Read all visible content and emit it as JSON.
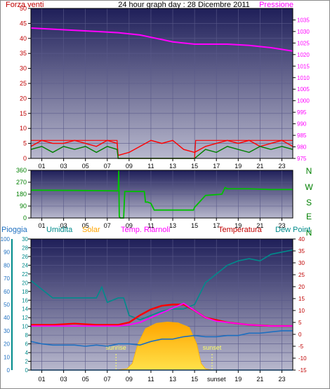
{
  "colors": {
    "background": "#ffffff",
    "plot_top": "#1f1f59",
    "plot_bottom": "#b8b8cd",
    "grid": "#5a5a8a",
    "tick_text": "#000000",
    "wind_speed": "#ff0000",
    "wind_gust": "#008000",
    "pressure": "#ff00ff",
    "wind_dir": "#00c000",
    "humidity": "#008b8b",
    "solar": "#ffa500",
    "indoor_temp": "#ff00ff",
    "temperature": "#ff0000",
    "dew_point": "#1e6fc0",
    "rain": "#1e90ff",
    "sun_marker": "#ffff66"
  },
  "chart_data": [
    {
      "id": "wind-pressure",
      "type": "line",
      "title": "24 hour graph day : 28 Dicembre 2011",
      "left_label": "Forza venti",
      "right_label": "Pressione",
      "x_ticks": [
        "01",
        "03",
        "05",
        "07",
        "09",
        "11",
        "13",
        "15",
        "17",
        "19",
        "21",
        "23"
      ],
      "xlim": [
        0,
        24
      ],
      "ylim": [
        0,
        50
      ],
      "y_ticks": [
        0,
        5,
        10,
        15,
        20,
        25,
        30,
        35,
        40,
        45,
        50
      ],
      "y2lim": [
        975,
        1040
      ],
      "y2_ticks": [
        975,
        980,
        985,
        990,
        995,
        1000,
        1005,
        1010,
        1015,
        1020,
        1025,
        1030,
        1035
      ],
      "grid": true,
      "series": [
        {
          "id": "pressure",
          "axis": "right",
          "x": [
            0,
            2,
            4,
            6,
            8,
            9,
            10,
            11,
            12,
            13,
            14,
            15,
            16,
            18,
            20,
            22,
            24
          ],
          "y": [
            1031.5,
            1031,
            1030.5,
            1030,
            1029.5,
            1029,
            1028.5,
            1027.5,
            1026.5,
            1025.5,
            1025,
            1024.5,
            1024.5,
            1024.5,
            1024,
            1023,
            1021.5
          ]
        },
        {
          "id": "wind_speed",
          "axis": "left",
          "x": [
            0,
            1,
            2,
            3,
            4,
            5,
            6,
            7,
            7.9,
            8,
            9,
            10,
            11,
            12,
            13,
            14,
            15,
            16,
            17,
            18,
            19,
            20,
            21,
            22,
            23,
            24
          ],
          "y": [
            4,
            6,
            5,
            5,
            6,
            5,
            4,
            6,
            5,
            1,
            2,
            4,
            6,
            5,
            6,
            3,
            2,
            4,
            5,
            6,
            5,
            6,
            4,
            5,
            6,
            4
          ]
        },
        {
          "id": "wind_gust",
          "axis": "left",
          "x": [
            0,
            1,
            2,
            3,
            4,
            5,
            6,
            7,
            7.9,
            8,
            10,
            12,
            14,
            15,
            16,
            17,
            18,
            19,
            20,
            21,
            22,
            23,
            24
          ],
          "y": [
            3,
            4,
            2,
            4,
            3,
            4,
            2,
            4,
            3,
            0,
            0,
            0,
            0,
            0,
            3,
            2,
            4,
            3,
            2,
            4,
            3,
            4,
            3
          ]
        }
      ],
      "step_lines": {
        "x": [
          0,
          7.9,
          8,
          15,
          15.1,
          24
        ],
        "y": [
          6,
          6,
          0,
          0,
          6,
          6
        ]
      }
    },
    {
      "id": "wind-direction",
      "type": "line",
      "x_ticks": [
        "01",
        "03",
        "05",
        "07",
        "09",
        "11",
        "13",
        "15",
        "17",
        "19",
        "21",
        "23"
      ],
      "xlim": [
        0,
        24
      ],
      "ylim": [
        0,
        360
      ],
      "y_ticks": [
        0,
        90,
        180,
        270,
        360
      ],
      "right_labels": [
        "N",
        "W",
        "S",
        "E",
        "N"
      ],
      "grid": true,
      "series": [
        {
          "id": "wind_dir",
          "x": [
            0,
            4,
            7.9,
            8,
            8.05,
            8.1,
            8.2,
            8.5,
            8.6,
            8.7,
            9,
            10.4,
            10.5,
            10.7,
            11,
            11.3,
            11.5,
            13,
            14.9,
            15,
            16,
            17.5,
            17.8,
            18,
            20,
            22,
            24
          ],
          "y": [
            210,
            208,
            205,
            205,
            360,
            10,
            0,
            0,
            200,
            200,
            200,
            200,
            120,
            120,
            110,
            60,
            60,
            60,
            60,
            80,
            170,
            180,
            230,
            220,
            220,
            215,
            215
          ]
        }
      ]
    },
    {
      "id": "temperature-humidity",
      "type": "line",
      "legend": [
        "Pioggia",
        "Umidita",
        "Solar",
        "Temp. Riarnoli",
        "Temperatura",
        "Dew Point"
      ],
      "x_ticks": [
        "01",
        "03",
        "05",
        "07",
        "09",
        "11",
        "13",
        "15",
        "sunset",
        "19",
        "21",
        "23"
      ],
      "xlim": [
        0,
        24
      ],
      "rain_lim": [
        0,
        100
      ],
      "rain_ticks": [
        0,
        10,
        20,
        30,
        40,
        50,
        60,
        70,
        80,
        90,
        100
      ],
      "hum_lim": [
        0,
        30
      ],
      "hum_ticks": [
        0,
        2,
        4,
        6,
        8,
        10,
        12,
        14,
        16,
        18,
        20,
        22,
        24,
        26,
        28,
        30
      ],
      "temp_lim": [
        -15,
        40
      ],
      "temp_ticks": [
        -15,
        -10,
        -5,
        0,
        5,
        10,
        15,
        20,
        25,
        30,
        35,
        40
      ],
      "sunrise_hour": 7.8,
      "sunset_hour": 16.6,
      "sunrise_label": "sunrise",
      "sunset_label": "sunset",
      "grid": true,
      "series": [
        {
          "id": "humidity",
          "axis": "hum",
          "x": [
            0,
            1,
            2,
            3,
            4,
            5,
            6,
            6.5,
            7,
            8,
            8.5,
            9,
            10,
            11,
            12,
            13,
            14,
            15,
            16,
            17,
            18,
            19,
            20,
            21,
            22,
            23,
            24
          ],
          "y": [
            20.5,
            18.5,
            16.5,
            16.5,
            16.5,
            16.5,
            16.5,
            19,
            15.5,
            16.5,
            16.5,
            12.5,
            11.5,
            12.5,
            13.5,
            14,
            14,
            15,
            20,
            22,
            24,
            25,
            25.5,
            25,
            26.5,
            27,
            27.5
          ]
        },
        {
          "id": "temperature",
          "axis": "temp",
          "x": [
            0,
            2,
            4,
            6,
            8,
            9,
            10,
            11,
            12,
            13,
            14,
            15,
            16,
            17,
            18,
            19,
            20,
            22,
            24
          ],
          "y": [
            4,
            4,
            4.5,
            4,
            4,
            5,
            8,
            10.5,
            12,
            12.5,
            12.5,
            10,
            7,
            6,
            5,
            4.5,
            4,
            3.5,
            3.5
          ]
        },
        {
          "id": "indoor_temp",
          "axis": "temp",
          "x": [
            0,
            2,
            4,
            6,
            8,
            9,
            10,
            11,
            12,
            13,
            14,
            15,
            16,
            17,
            18,
            20,
            22,
            24
          ],
          "y": [
            3.5,
            3.5,
            3.5,
            3.5,
            3.5,
            4,
            5,
            7,
            9,
            11,
            13,
            10,
            7,
            5.5,
            5,
            4,
            3.5,
            3.5
          ]
        },
        {
          "id": "dew_point",
          "axis": "temp",
          "x": [
            0,
            1,
            2,
            3,
            4,
            5,
            6,
            7,
            8,
            9,
            10,
            11,
            12,
            13,
            14,
            15,
            16,
            17,
            18,
            19,
            20,
            21,
            22,
            23,
            24
          ],
          "y": [
            -3,
            -4,
            -4.5,
            -4.5,
            -4.5,
            -5,
            -4.5,
            -5,
            -4,
            -4,
            -4.5,
            -3,
            -2,
            -2,
            -1,
            -0.5,
            -1,
            -1,
            -0.5,
            -0.5,
            0.5,
            0.5,
            1,
            1.5,
            1.5
          ]
        },
        {
          "id": "rain",
          "axis": "rain",
          "x": [
            0,
            24
          ],
          "y": [
            0,
            0
          ]
        },
        {
          "id": "solar",
          "axis": "hum",
          "x": [
            7.8,
            8.8,
            9.3,
            9.8,
            10.5,
            11.5,
            12.5,
            13.5,
            14.5,
            15.2,
            15.6,
            16,
            16.6
          ],
          "y": [
            0,
            0.3,
            1.5,
            6,
            9.5,
            10.7,
            11,
            10.8,
            9.8,
            6,
            1.5,
            0.3,
            0
          ]
        }
      ]
    }
  ]
}
